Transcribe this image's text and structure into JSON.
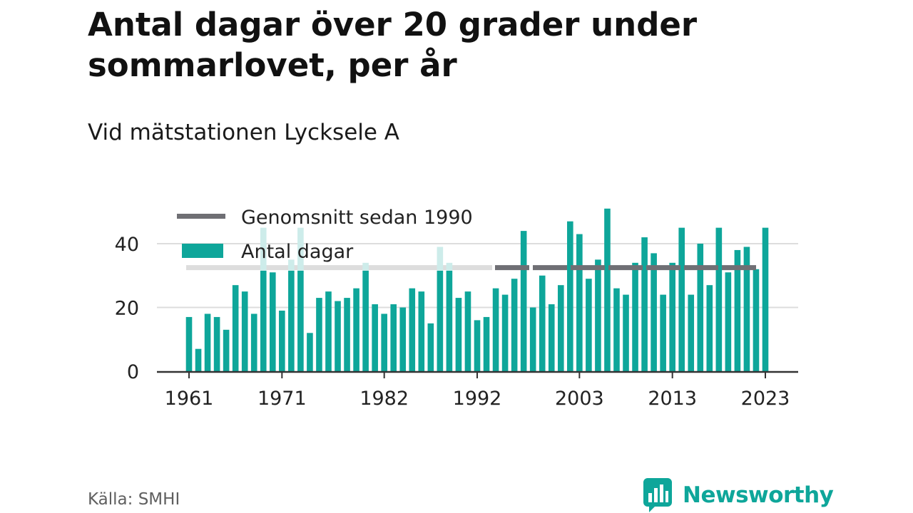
{
  "title": "Antal dagar över 20 grader under sommarlovet, per år",
  "subtitle": "Vid mätstationen Lycksele A",
  "source": "Källa: SMHI",
  "brand": {
    "name": "Newsworthy",
    "icon": "newsworthy-logo-icon"
  },
  "colors": {
    "bar": "#0ea69a",
    "bar_faded": "#cdecea",
    "average_line": "#6f6f74",
    "average_line_faded": "#dddddd",
    "grid": "#dddddd",
    "axis": "#333333"
  },
  "chart_data": {
    "type": "bar",
    "title": "Antal dagar över 20 grader under sommarlovet, per år",
    "subtitle": "Vid mätstationen Lycksele A",
    "xlabel": "",
    "ylabel": "",
    "ylim": [
      0,
      50
    ],
    "yticks": [
      0,
      20,
      40
    ],
    "xticks": [
      1961,
      1971,
      1982,
      1992,
      2003,
      2013,
      2023
    ],
    "grid": true,
    "legend_position": "top-left",
    "categories": [
      1961,
      1962,
      1963,
      1964,
      1965,
      1966,
      1967,
      1968,
      1969,
      1970,
      1971,
      1972,
      1973,
      1974,
      1975,
      1976,
      1977,
      1978,
      1979,
      1980,
      1981,
      1982,
      1983,
      1984,
      1985,
      1986,
      1987,
      1988,
      1989,
      1990,
      1991,
      1992,
      1993,
      1994,
      1995,
      1996,
      1997,
      1998,
      1999,
      2000,
      2001,
      2002,
      2003,
      2004,
      2005,
      2006,
      2007,
      2008,
      2009,
      2010,
      2011,
      2012,
      2013,
      2014,
      2015,
      2016,
      2017,
      2018,
      2019,
      2020,
      2021,
      2022,
      2023
    ],
    "series": [
      {
        "name": "Antal dagar",
        "type": "bar",
        "values": [
          17,
          7,
          18,
          17,
          13,
          27,
          25,
          18,
          45,
          31,
          19,
          35,
          45,
          12,
          23,
          25,
          22,
          23,
          26,
          34,
          21,
          18,
          21,
          20,
          26,
          25,
          15,
          39,
          34,
          23,
          25,
          16,
          17,
          26,
          24,
          29,
          44,
          20,
          30,
          21,
          27,
          47,
          43,
          29,
          35,
          51,
          26,
          24,
          34,
          42,
          37,
          24,
          34,
          45,
          24,
          40,
          27,
          45,
          31,
          38,
          39,
          32,
          45
        ]
      },
      {
        "name": "Genomsnitt sedan 1990",
        "type": "line",
        "value": 32.5,
        "x": [
          1961,
          2023
        ]
      }
    ]
  }
}
